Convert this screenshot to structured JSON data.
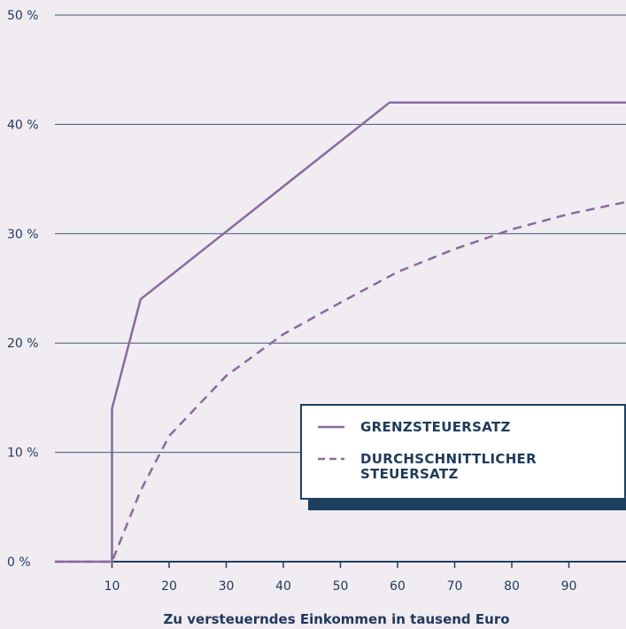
{
  "chart_data": {
    "type": "line",
    "x": [
      0,
      10,
      10,
      15,
      30,
      58.6,
      100
    ],
    "xlim": [
      0,
      100
    ],
    "ylim": [
      0,
      50
    ],
    "x_ticks": [
      10,
      20,
      30,
      40,
      50,
      60,
      70,
      80,
      90
    ],
    "y_ticks": [
      0,
      10,
      20,
      30,
      40,
      50
    ],
    "y_tick_labels": [
      "0 %",
      "10 %",
      "20 %",
      "30 %",
      "40 %",
      "50 %"
    ],
    "xlabel": "Zu versteuerndes Einkommen in tausend Euro",
    "ylabel": "",
    "grid": "horizontal",
    "legend_position": "bottom-right",
    "series": [
      {
        "name": "GRENZSTEUERSATZ",
        "style": "solid",
        "color": "#8a6a9e",
        "points": [
          [
            0,
            0
          ],
          [
            10,
            0
          ],
          [
            10,
            14
          ],
          [
            15,
            24
          ],
          [
            58.6,
            42
          ],
          [
            100,
            42
          ]
        ]
      },
      {
        "name": "DURCHSCHNITTLICHER STEUERSATZ",
        "style": "dashed",
        "color": "#8a6a9e",
        "points": [
          [
            0,
            0
          ],
          [
            10,
            0
          ],
          [
            15,
            6.5
          ],
          [
            20,
            11.5
          ],
          [
            30,
            17
          ],
          [
            40,
            20.8
          ],
          [
            50,
            23.7
          ],
          [
            60,
            26.5
          ],
          [
            70,
            28.6
          ],
          [
            80,
            30.4
          ],
          [
            90,
            31.8
          ],
          [
            100,
            32.9
          ]
        ]
      }
    ]
  }
}
